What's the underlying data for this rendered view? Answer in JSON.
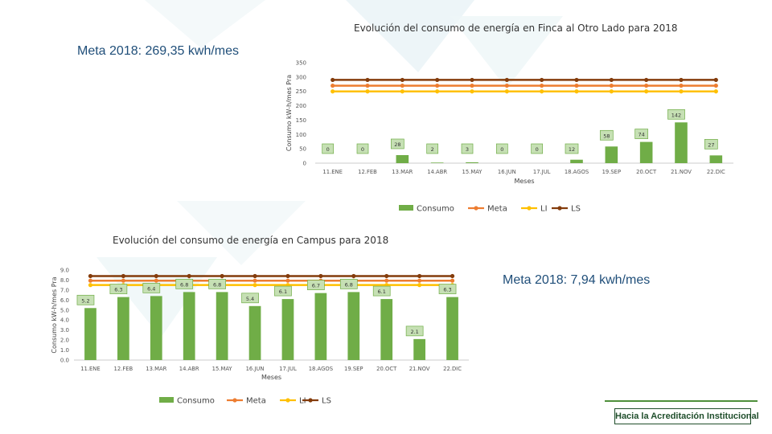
{
  "charts": [
    {
      "title": "Evolución del consumo de energía en Finca al Otro Lado para 2018",
      "meta_note": "Meta 2018: 269,35 kwh/mes"
    },
    {
      "title": "Evolución del consumo de energía en Campus para 2018",
      "meta_note": "Meta 2018: 7,94 kwh/mes"
    }
  ],
  "footer": {
    "badge": "Hacia la Acreditación Institucional"
  },
  "colors": {
    "consumo": "#70ad47",
    "meta": "#ed7d31",
    "li": "#ffc000",
    "ls": "#843c0c"
  },
  "chart_data": [
    {
      "type": "bar",
      "title": "Evolución del consumo de energía en Finca al Otro Lado para 2018",
      "xlabel": "Meses",
      "ylabel": "Consumo kW-h/mes Pra",
      "ylim": [
        0,
        350
      ],
      "yticks": [
        "0",
        "50",
        "100",
        "150",
        "200",
        "250",
        "300",
        "350"
      ],
      "categories": [
        "11.ENE",
        "12.FEB",
        "13.MAR",
        "14.ABR",
        "15.MAY",
        "16.JUN",
        "17.JUL",
        "18.AGOS",
        "19.SEP",
        "20.OCT",
        "21.NOV",
        "22.DIC"
      ],
      "series": [
        {
          "name": "Consumo",
          "kind": "bar",
          "values": [
            0,
            0,
            28,
            2,
            3,
            0,
            0,
            12,
            58,
            74,
            142,
            27
          ],
          "labels": [
            "0",
            "0",
            "28",
            "2",
            "3",
            "0",
            "0",
            "12",
            "58",
            "74",
            "142",
            "27"
          ]
        },
        {
          "name": "Meta",
          "kind": "line",
          "values": [
            270,
            270,
            270,
            270,
            270,
            270,
            270,
            270,
            270,
            270,
            270,
            270
          ]
        },
        {
          "name": "LI",
          "kind": "line",
          "values": [
            250,
            250,
            250,
            250,
            250,
            250,
            250,
            250,
            250,
            250,
            250,
            250
          ]
        },
        {
          "name": "LS",
          "kind": "line",
          "values": [
            290,
            290,
            290,
            290,
            290,
            290,
            290,
            290,
            290,
            290,
            290,
            290
          ]
        }
      ],
      "legend": "bottom"
    },
    {
      "type": "bar",
      "title": "Evolución del consumo de energía en Campus para 2018",
      "xlabel": "Meses",
      "ylabel": "Consumo kW-h/mes Pra",
      "ylim": [
        0,
        9
      ],
      "yticks": [
        "0.0",
        "1.0",
        "2.0",
        "3.0",
        "4.0",
        "5.0",
        "6.0",
        "7.0",
        "8.0",
        "9.0"
      ],
      "categories": [
        "11.ENE",
        "12.FEB",
        "13.MAR",
        "14.ABR",
        "15.MAY",
        "16.JUN",
        "17.JUL",
        "18.AGOS",
        "19.SEP",
        "20.OCT",
        "21.NOV",
        "22.DIC"
      ],
      "series": [
        {
          "name": "Consumo",
          "kind": "bar",
          "values": [
            5.2,
            6.3,
            6.4,
            6.8,
            6.8,
            5.4,
            6.1,
            6.7,
            6.8,
            6.1,
            2.1,
            6.3
          ],
          "labels": [
            "5.2",
            "6.3",
            "6.4",
            "6.8",
            "6.8",
            "5.4",
            "6.1",
            "6.7",
            "6.8",
            "6.1",
            "2.1",
            "6.3"
          ]
        },
        {
          "name": "Meta",
          "kind": "line",
          "values": [
            7.94,
            7.94,
            7.94,
            7.94,
            7.94,
            7.94,
            7.94,
            7.94,
            7.94,
            7.94,
            7.94,
            7.94
          ]
        },
        {
          "name": "LI",
          "kind": "line",
          "values": [
            7.5,
            7.5,
            7.5,
            7.5,
            7.5,
            7.5,
            7.5,
            7.5,
            7.5,
            7.5,
            7.5,
            7.5
          ]
        },
        {
          "name": "LS",
          "kind": "line",
          "values": [
            8.4,
            8.4,
            8.4,
            8.4,
            8.4,
            8.4,
            8.4,
            8.4,
            8.4,
            8.4,
            8.4,
            8.4
          ]
        }
      ],
      "legend": "bottom"
    }
  ]
}
